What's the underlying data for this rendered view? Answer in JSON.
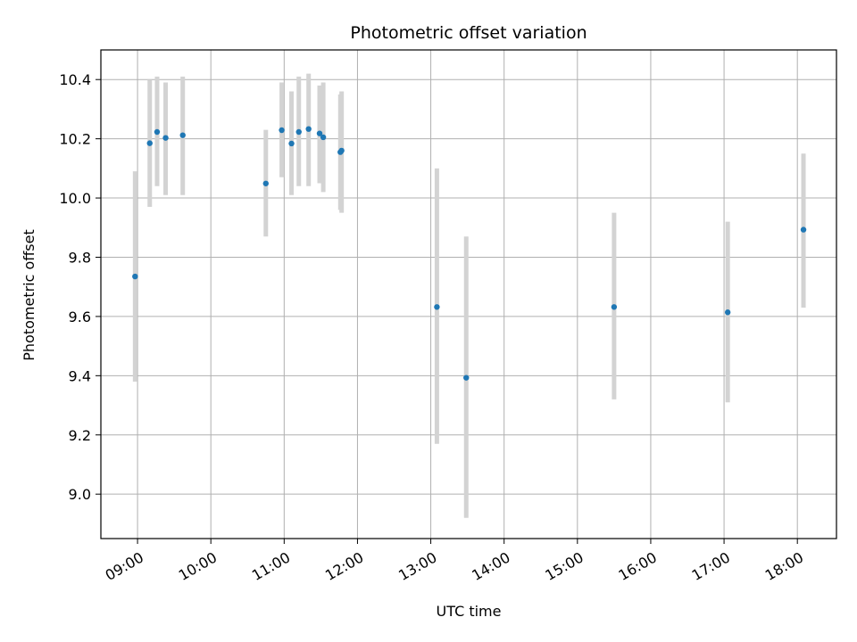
{
  "chart_data": {
    "type": "scatter",
    "title": "Photometric offset variation",
    "xlabel": "UTC time",
    "ylabel": "Photometric offset",
    "x_ticks": [
      "09:00",
      "10:00",
      "11:00",
      "12:00",
      "13:00",
      "14:00",
      "15:00",
      "16:00",
      "17:00",
      "18:00"
    ],
    "y_ticks": [
      "9.0",
      "9.2",
      "9.4",
      "9.6",
      "9.8",
      "10.0",
      "10.2",
      "10.4"
    ],
    "xlim": [
      "08:30",
      "18:32"
    ],
    "ylim": [
      8.85,
      10.5
    ],
    "grid": true,
    "marker_color": "#1f77b4",
    "errorbar_color": "#d3d3d3",
    "points": [
      {
        "x": "08:58",
        "y": 9.735,
        "low": 9.38,
        "high": 10.09
      },
      {
        "x": "09:10",
        "y": 10.185,
        "low": 9.97,
        "high": 10.4
      },
      {
        "x": "09:16",
        "y": 10.223,
        "low": 10.04,
        "high": 10.41
      },
      {
        "x": "09:23",
        "y": 10.203,
        "low": 10.01,
        "high": 10.39
      },
      {
        "x": "09:37",
        "y": 10.212,
        "low": 10.01,
        "high": 10.41
      },
      {
        "x": "10:45",
        "y": 10.049,
        "low": 9.87,
        "high": 10.23
      },
      {
        "x": "10:58",
        "y": 10.229,
        "low": 10.07,
        "high": 10.39
      },
      {
        "x": "11:06",
        "y": 10.184,
        "low": 10.01,
        "high": 10.36
      },
      {
        "x": "11:12",
        "y": 10.223,
        "low": 10.04,
        "high": 10.41
      },
      {
        "x": "11:20",
        "y": 10.233,
        "low": 10.04,
        "high": 10.42
      },
      {
        "x": "11:29",
        "y": 10.218,
        "low": 10.05,
        "high": 10.38
      },
      {
        "x": "11:32",
        "y": 10.205,
        "low": 10.02,
        "high": 10.39
      },
      {
        "x": "11:46",
        "y": 10.155,
        "low": 9.96,
        "high": 10.35
      },
      {
        "x": "11:47",
        "y": 10.16,
        "low": 9.95,
        "high": 10.36
      },
      {
        "x": "13:05",
        "y": 9.632,
        "low": 9.17,
        "high": 10.1
      },
      {
        "x": "13:29",
        "y": 9.393,
        "low": 8.92,
        "high": 9.87
      },
      {
        "x": "15:30",
        "y": 9.632,
        "low": 9.32,
        "high": 9.95
      },
      {
        "x": "17:03",
        "y": 9.614,
        "low": 9.31,
        "high": 9.92
      },
      {
        "x": "18:05",
        "y": 9.893,
        "low": 9.63,
        "high": 10.15
      }
    ]
  }
}
